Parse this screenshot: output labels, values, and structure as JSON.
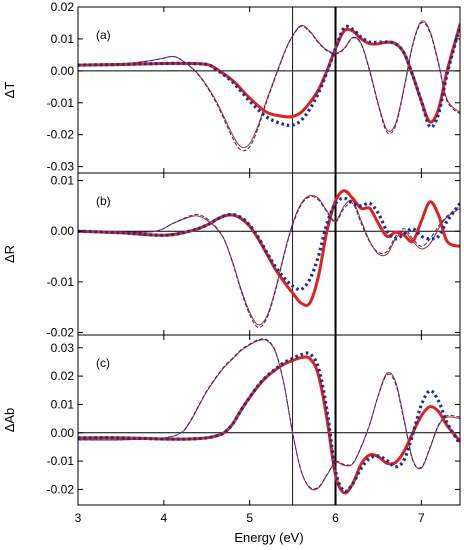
{
  "chart_data": [
    {
      "type": "line",
      "panel_label": "(a)",
      "ylabel": "ΔT",
      "xlim": [
        3,
        7.45
      ],
      "ylim": [
        -0.032,
        0.02
      ],
      "yticks": [
        0.02,
        0.01,
        0.0,
        -0.01,
        -0.02,
        -0.03
      ],
      "ytick_labels": [
        "0.02",
        "0.01",
        "0.00",
        "-0.01",
        "-0.02",
        "-0.03"
      ],
      "series": [
        {
          "style": "thick-red",
          "color": "#dd2222",
          "x": [
            3.0,
            3.5,
            4.0,
            4.3,
            4.5,
            4.6,
            4.8,
            5.0,
            5.2,
            5.4,
            5.5,
            5.6,
            5.7,
            5.8,
            5.9,
            6.0,
            6.1,
            6.2,
            6.3,
            6.4,
            6.5,
            6.6,
            6.7,
            6.8,
            6.9,
            7.0,
            7.1,
            7.2,
            7.3,
            7.45
          ],
          "y": [
            0.0018,
            0.002,
            0.0023,
            0.0023,
            0.002,
            0.0008,
            -0.003,
            -0.0085,
            -0.013,
            -0.0143,
            -0.0143,
            -0.013,
            -0.01,
            -0.006,
            0.0,
            0.007,
            0.0125,
            0.0125,
            0.01,
            0.0085,
            0.0085,
            0.009,
            0.0085,
            0.0055,
            -0.0015,
            -0.0095,
            -0.016,
            -0.012,
            0.0,
            0.0145
          ]
        },
        {
          "style": "dotted-blue",
          "color": "#1a2f8f",
          "x": [
            3.0,
            3.5,
            4.0,
            4.3,
            4.5,
            4.6,
            4.8,
            5.0,
            5.2,
            5.4,
            5.5,
            5.6,
            5.7,
            5.8,
            5.9,
            6.0,
            6.1,
            6.2,
            6.3,
            6.4,
            6.5,
            6.6,
            6.7,
            6.8,
            6.9,
            7.0,
            7.1,
            7.2,
            7.3,
            7.45
          ],
          "y": [
            0.0018,
            0.002,
            0.0023,
            0.0023,
            0.002,
            0.0006,
            -0.0035,
            -0.0095,
            -0.0145,
            -0.0168,
            -0.017,
            -0.0155,
            -0.012,
            -0.007,
            -0.0005,
            0.007,
            0.0135,
            0.013,
            0.0105,
            0.009,
            0.009,
            0.009,
            0.0085,
            0.0055,
            -0.0015,
            -0.0095,
            -0.0175,
            -0.0135,
            -0.001,
            0.014
          ]
        },
        {
          "style": "thin-red",
          "color": "#c21f1f",
          "x": [
            3.0,
            3.5,
            3.8,
            4.0,
            4.1,
            4.2,
            4.4,
            4.6,
            4.8,
            4.9,
            5.0,
            5.1,
            5.2,
            5.4,
            5.5,
            5.6,
            5.7,
            5.8,
            5.9,
            6.0,
            6.1,
            6.2,
            6.3,
            6.4,
            6.5,
            6.6,
            6.7,
            6.8,
            6.9,
            7.0,
            7.1,
            7.2,
            7.3,
            7.45
          ],
          "y": [
            0.0018,
            0.0022,
            0.003,
            0.004,
            0.0045,
            0.0035,
            -0.001,
            -0.009,
            -0.02,
            -0.0238,
            -0.0228,
            -0.017,
            -0.009,
            0.0055,
            0.011,
            0.0142,
            0.0125,
            0.009,
            0.0065,
            0.0055,
            0.007,
            0.0105,
            0.0085,
            0.0,
            -0.0105,
            -0.0185,
            -0.0165,
            -0.005,
            0.0085,
            0.0155,
            0.0125,
            0.0025,
            -0.009,
            -0.013
          ]
        },
        {
          "style": "thin-dashed-blue",
          "color": "#1a2f8f",
          "x": [
            3.0,
            3.5,
            3.8,
            4.0,
            4.1,
            4.2,
            4.4,
            4.6,
            4.8,
            4.9,
            5.0,
            5.1,
            5.2,
            5.4,
            5.5,
            5.6,
            5.7,
            5.8,
            5.9,
            6.0,
            6.1,
            6.2,
            6.3,
            6.4,
            6.5,
            6.6,
            6.7,
            6.8,
            6.9,
            7.0,
            7.1,
            7.2,
            7.3,
            7.45
          ],
          "y": [
            0.0018,
            0.0022,
            0.003,
            0.004,
            0.0045,
            0.0035,
            -0.0012,
            -0.0095,
            -0.021,
            -0.0248,
            -0.0238,
            -0.0178,
            -0.0095,
            0.0052,
            0.0108,
            0.014,
            0.0122,
            0.0088,
            0.0063,
            0.0053,
            0.0068,
            0.0103,
            0.0083,
            -0.0005,
            -0.011,
            -0.0192,
            -0.0172,
            -0.0055,
            0.008,
            0.015,
            0.012,
            0.002,
            -0.0095,
            -0.0135
          ]
        }
      ]
    },
    {
      "type": "line",
      "panel_label": "(b)",
      "ylabel": "ΔR",
      "xlim": [
        3,
        7.45
      ],
      "ylim": [
        -0.0205,
        0.0115
      ],
      "yticks": [
        0.01,
        0.0,
        -0.01,
        -0.02
      ],
      "ytick_labels": [
        "0.01",
        "0.00",
        "-0.01",
        "-0.02"
      ],
      "series": [
        {
          "style": "thick-red",
          "color": "#dd2222",
          "x": [
            3.0,
            3.5,
            4.0,
            4.3,
            4.5,
            4.6,
            4.7,
            4.8,
            4.9,
            5.0,
            5.1,
            5.2,
            5.3,
            5.4,
            5.5,
            5.6,
            5.7,
            5.8,
            5.9,
            6.0,
            6.1,
            6.2,
            6.3,
            6.4,
            6.5,
            6.6,
            6.7,
            6.8,
            6.9,
            7.0,
            7.1,
            7.2,
            7.3,
            7.45
          ],
          "y": [
            0.0,
            -0.0003,
            -0.0008,
            0.0,
            0.0012,
            0.0022,
            0.003,
            0.0032,
            0.0025,
            0.001,
            -0.0015,
            -0.0045,
            -0.0075,
            -0.01,
            -0.0122,
            -0.0142,
            -0.0142,
            -0.009,
            0.0,
            0.006,
            0.008,
            0.0065,
            0.0045,
            0.0045,
            0.0015,
            -0.001,
            -0.0002,
            -0.0008,
            -0.002,
            0.002,
            0.0058,
            0.0032,
            -0.002,
            -0.003
          ]
        },
        {
          "style": "dotted-blue",
          "color": "#1a2f8f",
          "x": [
            3.0,
            3.5,
            4.0,
            4.3,
            4.5,
            4.6,
            4.7,
            4.8,
            4.9,
            5.0,
            5.1,
            5.2,
            5.3,
            5.4,
            5.5,
            5.6,
            5.7,
            5.8,
            5.9,
            6.0,
            6.1,
            6.2,
            6.3,
            6.4,
            6.5,
            6.6,
            6.7,
            6.8,
            6.9,
            7.0,
            7.1,
            7.2,
            7.3,
            7.45
          ],
          "y": [
            0.0,
            -0.0003,
            -0.0008,
            0.0,
            0.0012,
            0.0022,
            0.003,
            0.0033,
            0.0027,
            0.0012,
            -0.0012,
            -0.0042,
            -0.007,
            -0.0092,
            -0.0108,
            -0.0115,
            -0.0095,
            -0.005,
            0.0015,
            0.0055,
            0.0065,
            0.0055,
            0.005,
            0.0055,
            0.0035,
            0.0,
            -0.0015,
            -0.0005,
            0.0005,
            -0.001,
            -0.0015,
            -0.001,
            0.002,
            0.0055
          ]
        },
        {
          "style": "thin-red",
          "color": "#c21f1f",
          "x": [
            3.0,
            3.5,
            3.9,
            4.1,
            4.3,
            4.4,
            4.5,
            4.6,
            4.7,
            4.8,
            4.9,
            5.0,
            5.1,
            5.2,
            5.3,
            5.4,
            5.5,
            5.6,
            5.7,
            5.8,
            5.9,
            6.0,
            6.1,
            6.2,
            6.3,
            6.4,
            6.5,
            6.6,
            6.7,
            6.8,
            6.9,
            7.0,
            7.1,
            7.2,
            7.3,
            7.45
          ],
          "y": [
            0.0,
            -0.0002,
            0.0,
            0.0015,
            0.0028,
            0.003,
            0.0022,
            0.0008,
            -0.0015,
            -0.006,
            -0.0115,
            -0.016,
            -0.0185,
            -0.0168,
            -0.0115,
            -0.0045,
            0.0015,
            0.0055,
            0.007,
            0.0065,
            0.004,
            0.002,
            0.005,
            0.006,
            0.002,
            -0.002,
            -0.0045,
            -0.0045,
            -0.0015,
            0.0,
            -0.002,
            -0.0035,
            -0.0025,
            0.0005,
            0.0028,
            0.0045
          ]
        },
        {
          "style": "thin-dashed-blue",
          "color": "#1a2f8f",
          "x": [
            3.0,
            3.5,
            3.9,
            4.1,
            4.3,
            4.4,
            4.5,
            4.6,
            4.7,
            4.8,
            4.9,
            5.0,
            5.1,
            5.2,
            5.3,
            5.4,
            5.5,
            5.6,
            5.7,
            5.8,
            5.9,
            6.0,
            6.1,
            6.2,
            6.3,
            6.4,
            6.5,
            6.6,
            6.7,
            6.8,
            6.9,
            7.0,
            7.1,
            7.2,
            7.3,
            7.45
          ],
          "y": [
            0.0,
            -0.0002,
            0.0,
            0.0015,
            0.003,
            0.0033,
            0.0025,
            0.001,
            -0.0015,
            -0.0062,
            -0.0118,
            -0.0165,
            -0.019,
            -0.0172,
            -0.0118,
            -0.0048,
            0.0012,
            0.0052,
            0.0068,
            0.0062,
            0.0038,
            0.0018,
            0.0045,
            0.0055,
            0.0015,
            -0.0022,
            -0.0042,
            -0.004,
            -0.001,
            0.0005,
            -0.0015,
            -0.003,
            -0.0015,
            0.001,
            0.003,
            0.005
          ]
        }
      ]
    },
    {
      "type": "line",
      "panel_label": "(c)",
      "ylabel": "ΔAb",
      "xlabel": "Energy (eV)",
      "xlim": [
        3,
        7.45
      ],
      "ylim": [
        -0.0255,
        0.0345
      ],
      "yticks": [
        0.03,
        0.02,
        0.01,
        0.0,
        -0.01,
        -0.02
      ],
      "ytick_labels": [
        "0.03",
        "0.02",
        "0.01",
        "0.00",
        "-0.01",
        "-0.02"
      ],
      "xticks": [
        3,
        4,
        5,
        6,
        7
      ],
      "xtick_labels": [
        "3",
        "4",
        "5",
        "6",
        "7"
      ],
      "series": [
        {
          "style": "thick-red",
          "color": "#dd2222",
          "x": [
            3.0,
            3.5,
            4.0,
            4.3,
            4.5,
            4.6,
            4.7,
            4.8,
            4.9,
            5.0,
            5.1,
            5.2,
            5.3,
            5.4,
            5.5,
            5.6,
            5.7,
            5.8,
            5.9,
            6.0,
            6.1,
            6.2,
            6.3,
            6.4,
            6.5,
            6.6,
            6.7,
            6.8,
            6.9,
            7.0,
            7.1,
            7.2,
            7.3,
            7.45
          ],
          "y": [
            -0.0018,
            -0.0018,
            -0.0022,
            -0.0022,
            -0.0018,
            -0.0012,
            0.0,
            0.003,
            0.008,
            0.0125,
            0.0165,
            0.0198,
            0.0222,
            0.0242,
            0.0255,
            0.0265,
            0.0262,
            0.0205,
            0.005,
            -0.015,
            -0.0212,
            -0.018,
            -0.011,
            -0.0078,
            -0.0085,
            -0.0108,
            -0.0105,
            -0.0065,
            0.0,
            0.006,
            0.0092,
            0.0075,
            0.0025,
            -0.003
          ]
        },
        {
          "style": "dotted-blue",
          "color": "#1a2f8f",
          "x": [
            3.0,
            3.5,
            4.0,
            4.3,
            4.5,
            4.6,
            4.7,
            4.8,
            4.9,
            5.0,
            5.1,
            5.2,
            5.3,
            5.4,
            5.5,
            5.6,
            5.7,
            5.8,
            5.9,
            6.0,
            6.1,
            6.2,
            6.3,
            6.4,
            6.5,
            6.6,
            6.7,
            6.8,
            6.9,
            7.0,
            7.1,
            7.2,
            7.3,
            7.45
          ],
          "y": [
            -0.0018,
            -0.0018,
            -0.0022,
            -0.0022,
            -0.0018,
            -0.0012,
            0.0,
            0.003,
            0.008,
            0.0125,
            0.0167,
            0.02,
            0.0225,
            0.0248,
            0.0262,
            0.0276,
            0.0278,
            0.023,
            0.008,
            -0.0135,
            -0.0205,
            -0.018,
            -0.0125,
            -0.009,
            -0.0082,
            -0.0098,
            -0.012,
            -0.0095,
            -0.0005,
            0.0098,
            0.0148,
            0.0112,
            0.0035,
            -0.004
          ]
        },
        {
          "style": "thin-red",
          "color": "#c21f1f",
          "x": [
            3.0,
            3.5,
            4.0,
            4.2,
            4.3,
            4.4,
            4.5,
            4.6,
            4.7,
            4.8,
            4.9,
            5.0,
            5.1,
            5.2,
            5.3,
            5.4,
            5.5,
            5.6,
            5.7,
            5.8,
            5.9,
            6.0,
            6.1,
            6.2,
            6.3,
            6.4,
            6.5,
            6.6,
            6.7,
            6.8,
            6.9,
            7.0,
            7.1,
            7.2,
            7.3,
            7.45
          ],
          "y": [
            -0.0025,
            -0.0025,
            -0.0018,
            0.0,
            0.0035,
            0.009,
            0.0145,
            0.019,
            0.023,
            0.026,
            0.029,
            0.031,
            0.0325,
            0.0325,
            0.0285,
            0.017,
            0.0,
            -0.0135,
            -0.0195,
            -0.0195,
            -0.015,
            -0.0105,
            -0.0115,
            -0.011,
            -0.005,
            0.003,
            0.0135,
            0.021,
            0.018,
            0.0045,
            -0.0095,
            -0.0125,
            -0.0055,
            0.0025,
            0.0055,
            0.005
          ]
        },
        {
          "style": "thin-dashed-blue",
          "color": "#1a2f8f",
          "x": [
            3.0,
            3.5,
            4.0,
            4.2,
            4.3,
            4.4,
            4.5,
            4.6,
            4.7,
            4.8,
            4.9,
            5.0,
            5.1,
            5.2,
            5.3,
            5.4,
            5.5,
            5.6,
            5.7,
            5.8,
            5.9,
            6.0,
            6.1,
            6.2,
            6.3,
            6.4,
            6.5,
            6.6,
            6.7,
            6.8,
            6.9,
            7.0,
            7.1,
            7.2,
            7.3,
            7.45
          ],
          "y": [
            -0.0025,
            -0.0025,
            -0.0018,
            0.0,
            0.0038,
            0.0093,
            0.0148,
            0.0193,
            0.0233,
            0.0263,
            0.0293,
            0.0313,
            0.0328,
            0.0328,
            0.0288,
            0.0172,
            0.0,
            -0.0135,
            -0.0192,
            -0.0192,
            -0.0148,
            -0.0102,
            -0.0112,
            -0.0108,
            -0.0048,
            0.0032,
            0.0132,
            0.0205,
            0.0172,
            0.004,
            -0.0098,
            -0.0122,
            -0.0052,
            0.0028,
            0.006,
            0.0055
          ]
        }
      ]
    }
  ]
}
